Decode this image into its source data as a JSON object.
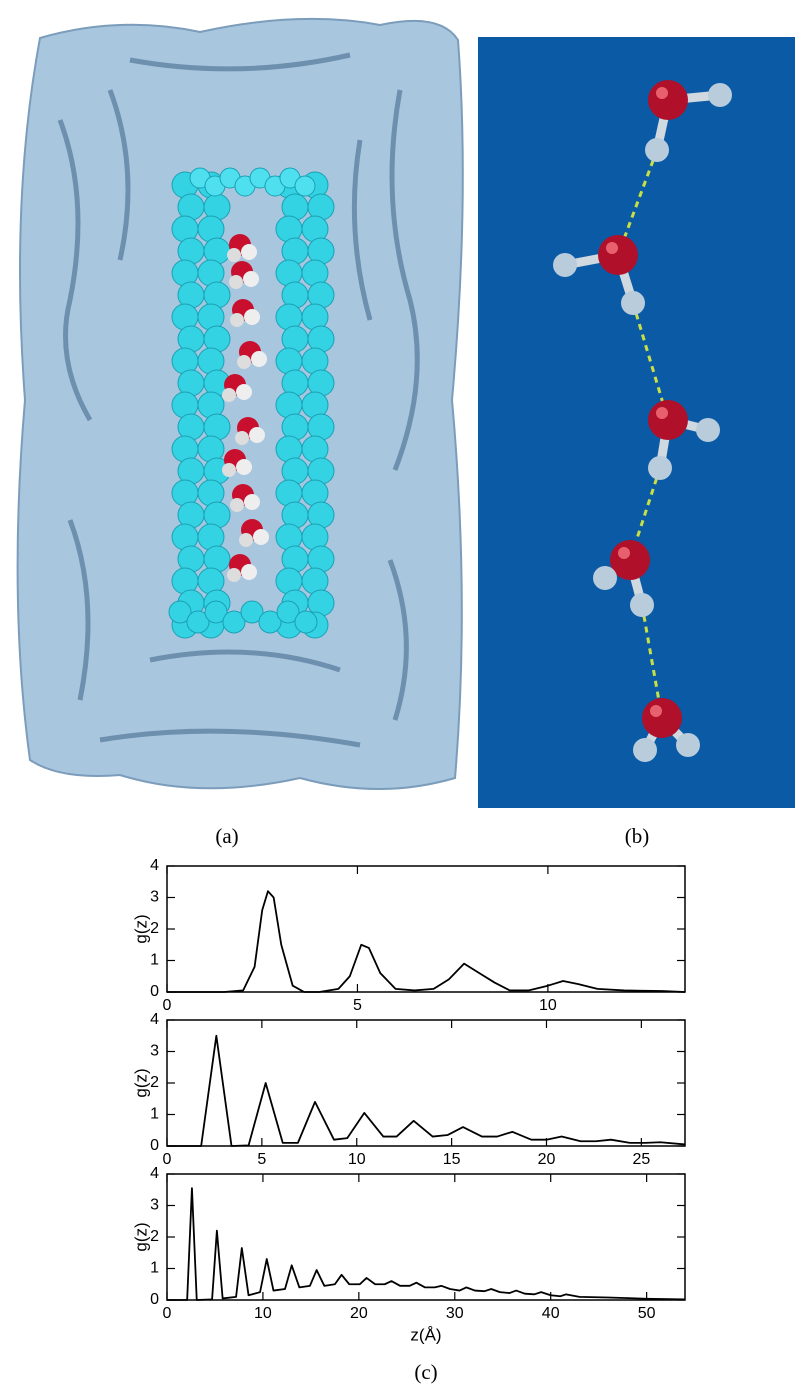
{
  "panel_labels": [
    "(a)",
    "(b)",
    "(c)"
  ],
  "chart_data": [
    {
      "type": "line",
      "ylabel": "g(z)",
      "x": [
        0,
        1.5,
        2.0,
        2.3,
        2.5,
        2.65,
        2.8,
        3.0,
        3.3,
        3.6,
        4.0,
        4.5,
        4.8,
        5.1,
        5.3,
        5.6,
        6.0,
        6.5,
        7.0,
        7.4,
        7.8,
        8.2,
        8.6,
        9.0,
        9.5,
        10.0,
        10.4,
        10.8,
        11.3,
        12.0,
        13.0,
        13.6
      ],
      "values": [
        0,
        0,
        0.05,
        0.8,
        2.6,
        3.2,
        3.0,
        1.5,
        0.2,
        0,
        0,
        0.1,
        0.5,
        1.5,
        1.4,
        0.6,
        0.1,
        0.05,
        0.1,
        0.4,
        0.9,
        0.6,
        0.3,
        0.05,
        0.05,
        0.2,
        0.35,
        0.25,
        0.1,
        0.05,
        0.03,
        0
      ],
      "color": "#000000",
      "xlim": [
        0,
        13.6
      ],
      "ylim": [
        0,
        4
      ],
      "xticks": [
        0,
        5,
        10
      ],
      "yticks": [
        0,
        1,
        2,
        3,
        4
      ]
    },
    {
      "type": "line",
      "ylabel": "g(z)",
      "x": [
        0,
        1.8,
        2.6,
        3.4,
        4.3,
        5.2,
        6.1,
        6.9,
        7.8,
        8.8,
        9.5,
        10.4,
        11.4,
        12.1,
        13.0,
        14.0,
        14.8,
        15.6,
        16.6,
        17.4,
        18.2,
        19.2,
        20.0,
        20.8,
        21.8,
        22.6,
        23.4,
        24.4,
        25.2,
        26.0,
        27.3
      ],
      "values": [
        0,
        0,
        3.5,
        0,
        0.02,
        2.0,
        0.1,
        0.1,
        1.4,
        0.2,
        0.25,
        1.05,
        0.3,
        0.3,
        0.8,
        0.3,
        0.35,
        0.6,
        0.3,
        0.3,
        0.45,
        0.2,
        0.2,
        0.3,
        0.15,
        0.15,
        0.2,
        0.1,
        0.1,
        0.12,
        0.05
      ],
      "color": "#000000",
      "xlim": [
        0,
        27.3
      ],
      "ylim": [
        0,
        4
      ],
      "xticks": [
        0,
        5,
        10,
        15,
        20,
        25
      ],
      "yticks": [
        0,
        1,
        2,
        3,
        4
      ]
    },
    {
      "type": "line",
      "ylabel": "g(z)",
      "xlabel": "z(Å)",
      "x": [
        0,
        2.1,
        2.6,
        3.1,
        4.7,
        5.2,
        5.8,
        7.2,
        7.8,
        8.5,
        9.7,
        10.4,
        11.1,
        12.3,
        13.0,
        13.8,
        14.9,
        15.6,
        16.4,
        17.5,
        18.2,
        19.0,
        20.1,
        20.8,
        21.7,
        22.7,
        23.4,
        24.3,
        25.3,
        26.0,
        26.9,
        27.9,
        28.6,
        29.5,
        30.5,
        31.2,
        32.1,
        33.1,
        33.8,
        34.7,
        35.7,
        36.4,
        37.3,
        38.3,
        39.0,
        40.0,
        41.0,
        41.6,
        43.0,
        46.0,
        50.0,
        54.0
      ],
      "values": [
        0,
        0,
        3.55,
        0,
        0.02,
        2.2,
        0.05,
        0.1,
        1.65,
        0.15,
        0.25,
        1.3,
        0.3,
        0.35,
        1.1,
        0.4,
        0.45,
        0.95,
        0.45,
        0.5,
        0.8,
        0.5,
        0.5,
        0.7,
        0.5,
        0.5,
        0.6,
        0.45,
        0.45,
        0.55,
        0.4,
        0.4,
        0.45,
        0.35,
        0.3,
        0.4,
        0.3,
        0.28,
        0.35,
        0.25,
        0.22,
        0.3,
        0.2,
        0.18,
        0.25,
        0.15,
        0.12,
        0.18,
        0.1,
        0.08,
        0.04,
        0.02
      ],
      "color": "#000000",
      "xlim": [
        0,
        54
      ],
      "ylim": [
        0,
        4
      ],
      "xticks": [
        0,
        10,
        20,
        30,
        40,
        50
      ],
      "yticks": [
        0,
        1,
        2,
        3,
        4
      ]
    }
  ]
}
